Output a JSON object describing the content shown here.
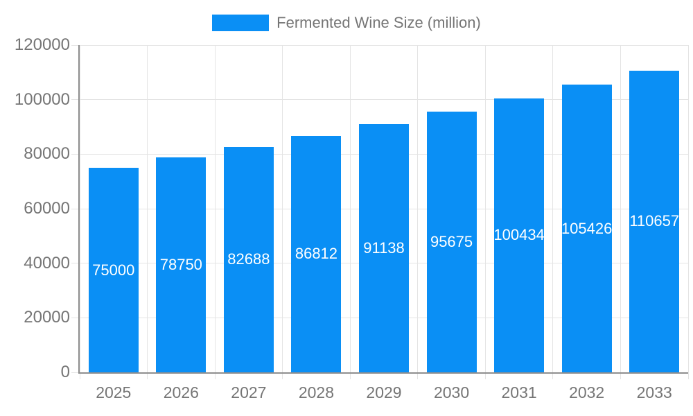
{
  "chart_data": {
    "type": "bar",
    "title": "Fermented Wine Size (million)",
    "categories": [
      "2025",
      "2026",
      "2027",
      "2028",
      "2029",
      "2030",
      "2031",
      "2032",
      "2033"
    ],
    "series": [
      {
        "name": "Fermented Wine Size (million)",
        "values": [
          75000,
          78750,
          82688,
          86812,
          91138,
          95675,
          100434,
          105426,
          110657
        ]
      }
    ],
    "xlabel": "",
    "ylabel": "",
    "ylim": [
      0,
      120000
    ],
    "ytick_step": 20000,
    "grid": true,
    "legend_position": "top-center",
    "bar_labels_inside": true,
    "colors": {
      "bar": "#0a8ff5",
      "bar_label_text": "#ffffff",
      "axis_text": "#757575",
      "gridline": "#e4e4e4",
      "axis_line": "#8f8f8f",
      "background": "#ffffff"
    }
  }
}
